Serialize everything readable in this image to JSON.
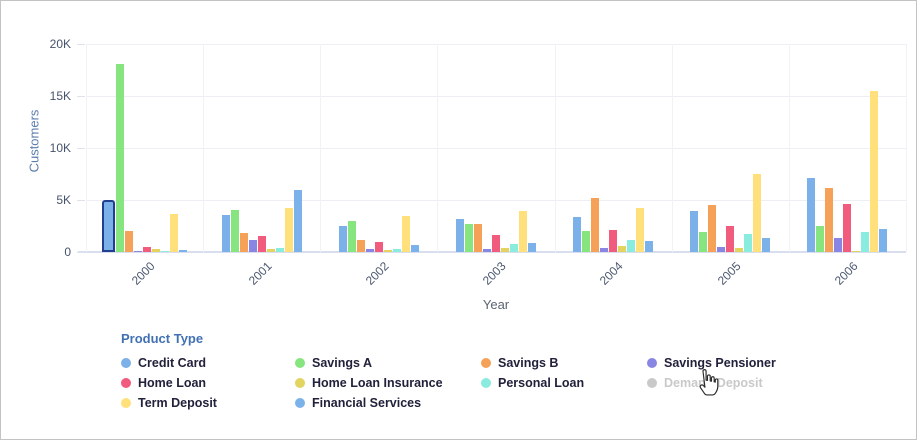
{
  "chart_data": {
    "type": "bar",
    "title": "",
    "categories": [
      "2000",
      "2001",
      "2002",
      "2003",
      "2004",
      "2005",
      "2006"
    ],
    "xlabel": "Year",
    "ylabel": "Customers",
    "ylim": [
      0,
      20000
    ],
    "y_ticks": [
      {
        "label": "0",
        "value": 0
      },
      {
        "label": "5K",
        "value": 5000
      },
      {
        "label": "10K",
        "value": 10000
      },
      {
        "label": "15K",
        "value": 15000
      },
      {
        "label": "20K",
        "value": 20000
      }
    ],
    "grid": true,
    "series": [
      {
        "name": "Credit Card",
        "color": "#7CB0E8",
        "values": [
          4400,
          3600,
          2500,
          3200,
          3400,
          3900,
          7100
        ]
      },
      {
        "name": "Savings A",
        "color": "#86E57E",
        "values": [
          18100,
          4000,
          3000,
          2700,
          2000,
          1900,
          2500
        ]
      },
      {
        "name": "Savings B",
        "color": "#F6A158",
        "values": [
          2000,
          1800,
          1200,
          2700,
          5200,
          4500,
          6200
        ]
      },
      {
        "name": "Savings Pensioner",
        "color": "#8985E2",
        "values": [
          50,
          1200,
          250,
          250,
          350,
          450,
          1300
        ]
      },
      {
        "name": "Home Loan",
        "color": "#F05B7E",
        "values": [
          450,
          1500,
          1000,
          1600,
          2100,
          2500,
          4600
        ]
      },
      {
        "name": "Home Loan Insurance",
        "color": "#E2D45F",
        "values": [
          300,
          300,
          200,
          350,
          600,
          350,
          100
        ]
      },
      {
        "name": "Personal Loan",
        "color": "#8AEBDF",
        "values": [
          50,
          350,
          250,
          800,
          1200,
          1700,
          1900
        ]
      },
      {
        "name": "Term Deposit",
        "color": "#FFE07A",
        "values": [
          3700,
          4200,
          3500,
          3900,
          4200,
          7500,
          15500
        ]
      },
      {
        "name": "Financial Services",
        "color": "#7CB2EA",
        "values": [
          150,
          6000,
          700,
          900,
          1100,
          1300,
          2200
        ]
      }
    ],
    "legend": {
      "title": "Product Type",
      "position": "bottom",
      "items": [
        {
          "label": "Credit Card",
          "color": "#7CB0E8",
          "disabled": false
        },
        {
          "label": "Savings A",
          "color": "#86E57E",
          "disabled": false
        },
        {
          "label": "Savings B",
          "color": "#F6A158",
          "disabled": false
        },
        {
          "label": "Savings Pensioner",
          "color": "#8985E2",
          "disabled": false
        },
        {
          "label": "Home Loan",
          "color": "#F05B7E",
          "disabled": false
        },
        {
          "label": "Home Loan Insurance",
          "color": "#E2D45F",
          "disabled": false
        },
        {
          "label": "Personal Loan",
          "color": "#8AEBDF",
          "disabled": false
        },
        {
          "label": "Demand Deposit",
          "color": "#C8C8C8",
          "disabled": true
        },
        {
          "label": "Term Deposit",
          "color": "#FFE07A",
          "disabled": false
        },
        {
          "label": "Financial Services",
          "color": "#7CB2EA",
          "disabled": false
        }
      ]
    },
    "selected_point": {
      "series": "Credit Card",
      "category": "2000",
      "highlight_color": "#20408f"
    },
    "cursor": {
      "icon": "hand-pointer",
      "over_item": "Demand Deposit"
    }
  }
}
